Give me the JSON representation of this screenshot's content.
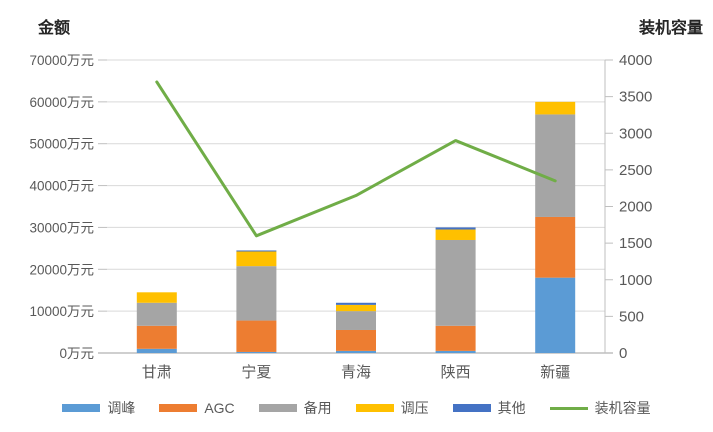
{
  "chart": {
    "left_axis_title": "金额",
    "right_axis_title": "装机容量",
    "colors": {
      "background": "#FFFFFF",
      "grid": "#D9D9D9",
      "axis_line": "#BFBFBF",
      "tick_text": "#595959",
      "title_text": "#262626"
    }
  },
  "chart_data": {
    "type": "bar",
    "subtype": "stacked-bars-with-line-overlay",
    "title": "",
    "xlabel": "",
    "categories": [
      "甘肃",
      "宁夏",
      "青海",
      "陕西",
      "新疆"
    ],
    "series": [
      {
        "name": "调峰",
        "type": "bar",
        "axis": "left",
        "color": "#5B9BD5",
        "values": [
          1000,
          250,
          500,
          500,
          18000
        ]
      },
      {
        "name": "AGC",
        "type": "bar",
        "axis": "left",
        "color": "#ED7D31",
        "values": [
          5500,
          7500,
          5000,
          6000,
          14500
        ]
      },
      {
        "name": "备用",
        "type": "bar",
        "axis": "left",
        "color": "#A5A5A5",
        "values": [
          5500,
          13000,
          4500,
          20500,
          24500
        ]
      },
      {
        "name": "调压",
        "type": "bar",
        "axis": "left",
        "color": "#FFC000",
        "values": [
          2500,
          3500,
          1500,
          2500,
          3000
        ]
      },
      {
        "name": "其他",
        "type": "bar",
        "axis": "left",
        "color": "#4472C4",
        "values": [
          0,
          250,
          500,
          500,
          0
        ]
      },
      {
        "name": "装机容量",
        "type": "line",
        "axis": "right",
        "color": "#70AD47",
        "values": [
          3700,
          1600,
          2150,
          2900,
          2350
        ]
      }
    ],
    "left_axis": {
      "title": "金额",
      "min": 0,
      "max": 70000,
      "step": 10000,
      "tick_suffix": "万元",
      "ticks": [
        "0万元",
        "10000万元",
        "20000万元",
        "30000万元",
        "40000万元",
        "50000万元",
        "60000万元",
        "70000万元"
      ]
    },
    "right_axis": {
      "title": "装机容量",
      "min": 0,
      "max": 4000,
      "step": 500,
      "ticks": [
        "0",
        "500",
        "1000",
        "1500",
        "2000",
        "2500",
        "3000",
        "3500",
        "4000"
      ]
    },
    "grid": true,
    "legend_position": "bottom",
    "stack_order_bottom_to_top": [
      "调峰",
      "AGC",
      "备用",
      "调压",
      "其他"
    ]
  }
}
